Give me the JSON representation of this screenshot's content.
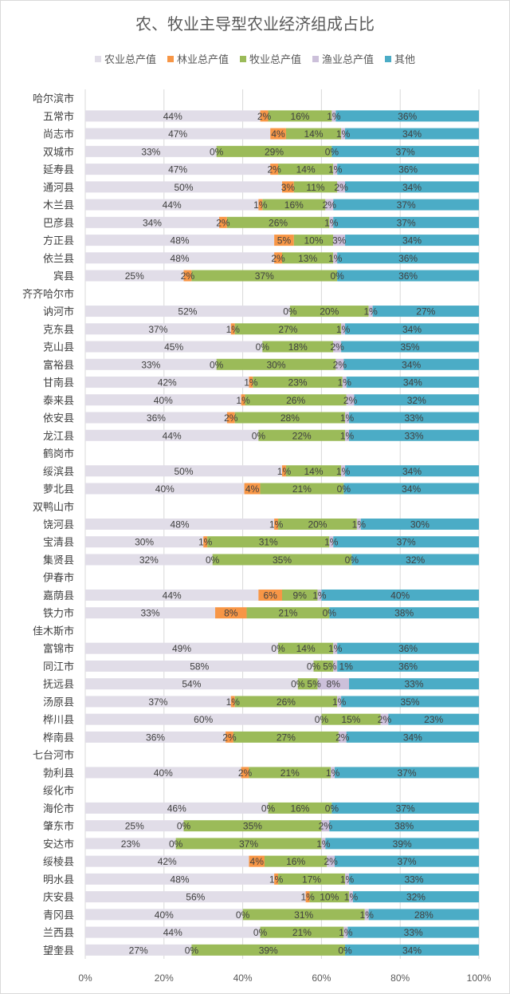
{
  "chart_data": {
    "type": "bar",
    "orientation": "horizontal",
    "stacked": "percent",
    "title": "农、牧业主导型农业经济组成占比",
    "legend_position": "top",
    "grid": true,
    "xlim": [
      0,
      100
    ],
    "x_ticks": [
      "0%",
      "20%",
      "40%",
      "60%",
      "80%",
      "100%"
    ],
    "series": [
      {
        "name": "农业总产值",
        "color": "#e1dde8"
      },
      {
        "name": "林业总产值",
        "color": "#f79646"
      },
      {
        "name": "牧业总产值",
        "color": "#9bbb59"
      },
      {
        "name": "渔业总产值",
        "color": "#ccc0da"
      },
      {
        "name": "其他",
        "color": "#4bacc6"
      }
    ],
    "rows": [
      {
        "label": "哈尔滨市",
        "values": null
      },
      {
        "label": "五常市",
        "values": [
          44,
          2,
          16,
          1,
          36
        ]
      },
      {
        "label": "尚志市",
        "values": [
          47,
          4,
          14,
          1,
          34
        ]
      },
      {
        "label": "双城市",
        "values": [
          33,
          0,
          29,
          0,
          37
        ]
      },
      {
        "label": "延寿县",
        "values": [
          47,
          2,
          14,
          1,
          36
        ]
      },
      {
        "label": "通河县",
        "values": [
          50,
          3,
          11,
          2,
          34
        ]
      },
      {
        "label": "木兰县",
        "values": [
          44,
          1,
          16,
          2,
          37
        ]
      },
      {
        "label": "巴彦县",
        "values": [
          34,
          2,
          26,
          1,
          37
        ]
      },
      {
        "label": "方正县",
        "values": [
          48,
          5,
          10,
          3,
          34
        ]
      },
      {
        "label": "依兰县",
        "values": [
          48,
          2,
          13,
          1,
          36
        ]
      },
      {
        "label": "宾县",
        "values": [
          25,
          2,
          37,
          0,
          36
        ]
      },
      {
        "label": "齐齐哈尔市",
        "values": null
      },
      {
        "label": "讷河市",
        "values": [
          52,
          0,
          20,
          1,
          27
        ]
      },
      {
        "label": "克东县",
        "values": [
          37,
          1,
          27,
          1,
          34
        ]
      },
      {
        "label": "克山县",
        "values": [
          45,
          0,
          18,
          2,
          35
        ]
      },
      {
        "label": "富裕县",
        "values": [
          33,
          0,
          30,
          2,
          34
        ]
      },
      {
        "label": "甘南县",
        "values": [
          42,
          1,
          23,
          1,
          34
        ]
      },
      {
        "label": "泰来县",
        "values": [
          40,
          1,
          26,
          2,
          32
        ]
      },
      {
        "label": "依安县",
        "values": [
          36,
          2,
          28,
          1,
          33
        ]
      },
      {
        "label": "龙江县",
        "values": [
          44,
          0,
          22,
          1,
          33
        ]
      },
      {
        "label": "鹤岗市",
        "values": null
      },
      {
        "label": "绥滨县",
        "values": [
          50,
          1,
          14,
          1,
          34
        ]
      },
      {
        "label": "萝北县",
        "values": [
          40,
          4,
          21,
          0,
          34
        ]
      },
      {
        "label": "双鸭山市",
        "values": null
      },
      {
        "label": "饶河县",
        "values": [
          48,
          1,
          20,
          1,
          30
        ]
      },
      {
        "label": "宝清县",
        "values": [
          30,
          1,
          31,
          1,
          37
        ]
      },
      {
        "label": "集贤县",
        "values": [
          32,
          0,
          35,
          0,
          32
        ]
      },
      {
        "label": "伊春市",
        "values": null
      },
      {
        "label": "嘉荫县",
        "values": [
          44,
          6,
          9,
          1,
          40
        ]
      },
      {
        "label": "铁力市",
        "values": [
          33,
          8,
          21,
          0,
          38
        ]
      },
      {
        "label": "佳木斯市",
        "values": null
      },
      {
        "label": "富锦市",
        "values": [
          49,
          0,
          14,
          1,
          36
        ]
      },
      {
        "label": "同江市",
        "values": [
          58,
          0,
          5,
          1,
          36
        ]
      },
      {
        "label": "抚远县",
        "values": [
          54,
          0,
          5,
          8,
          33
        ]
      },
      {
        "label": "汤原县",
        "values": [
          37,
          1,
          26,
          1,
          35
        ]
      },
      {
        "label": "桦川县",
        "values": [
          60,
          0,
          15,
          2,
          23
        ]
      },
      {
        "label": "桦南县",
        "values": [
          36,
          2,
          27,
          2,
          34
        ]
      },
      {
        "label": "七台河市",
        "values": null
      },
      {
        "label": "勃利县",
        "values": [
          40,
          2,
          21,
          1,
          37
        ]
      },
      {
        "label": "绥化市",
        "values": null
      },
      {
        "label": "海伦市",
        "values": [
          46,
          0,
          16,
          0,
          37
        ]
      },
      {
        "label": "肇东市",
        "values": [
          25,
          0,
          35,
          2,
          38
        ]
      },
      {
        "label": "安达市",
        "values": [
          23,
          0,
          37,
          1,
          39
        ]
      },
      {
        "label": "绥棱县",
        "values": [
          42,
          4,
          16,
          2,
          37
        ]
      },
      {
        "label": "明水县",
        "values": [
          48,
          1,
          17,
          1,
          33
        ]
      },
      {
        "label": "庆安县",
        "values": [
          56,
          1,
          10,
          1,
          32
        ]
      },
      {
        "label": "青冈县",
        "values": [
          40,
          0,
          31,
          1,
          28
        ]
      },
      {
        "label": "兰西县",
        "values": [
          44,
          0,
          21,
          1,
          33
        ]
      },
      {
        "label": "望奎县",
        "values": [
          27,
          0,
          39,
          0,
          34
        ]
      }
    ]
  }
}
